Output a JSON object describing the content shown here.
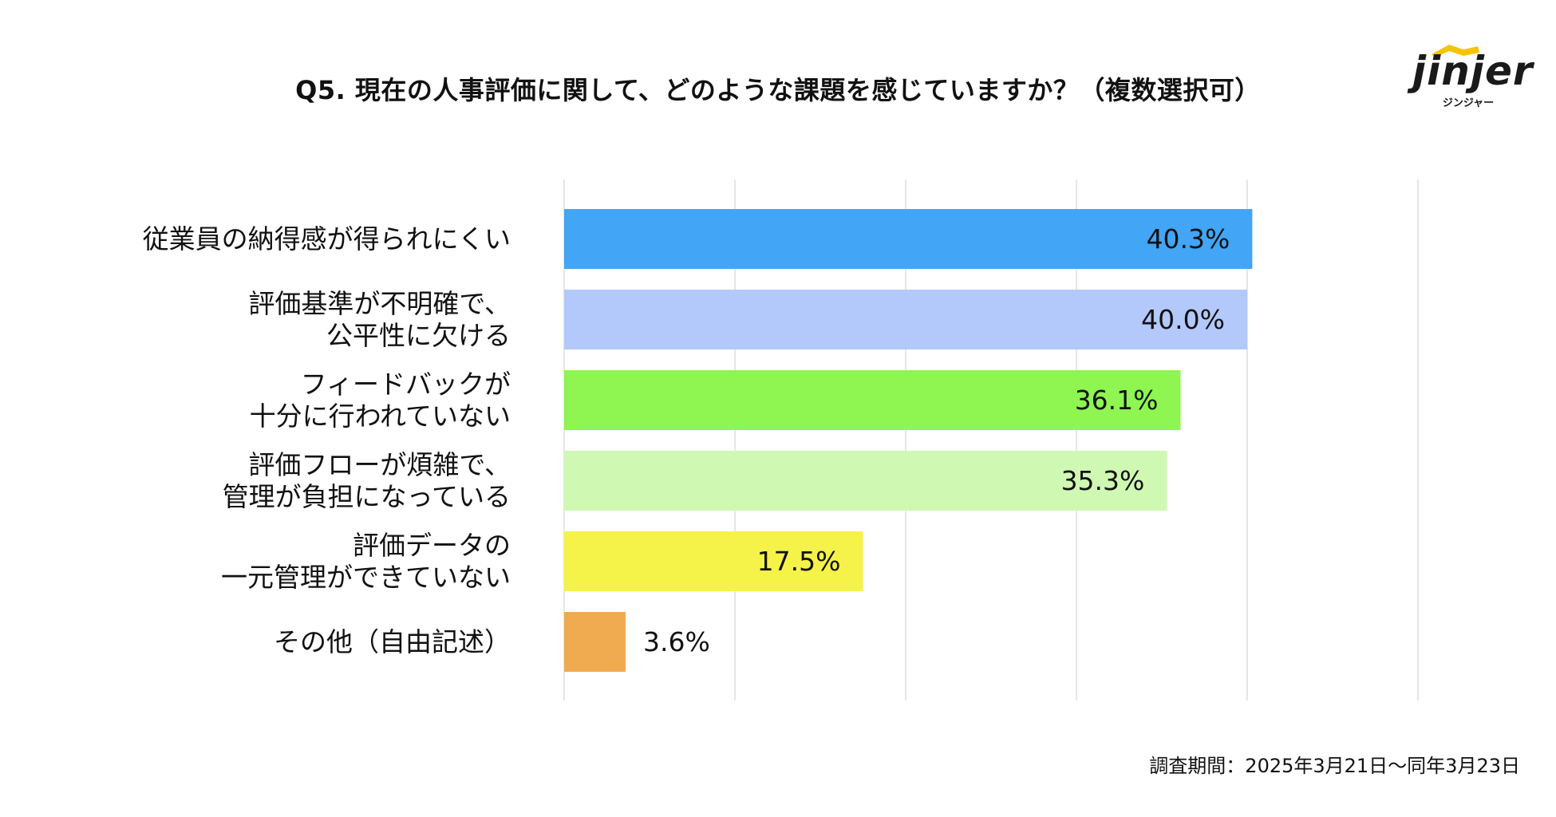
{
  "title": "Q5. 現在の人事評価に関して、どのような課題を感じていますか？（複数選択可）",
  "logo": {
    "word": "jinjer",
    "sub": "ジンジャー",
    "hat_color": "#f5c400"
  },
  "footnote": "調査期間：2025年3月21日～同年3月23日",
  "chart_data": {
    "type": "bar",
    "orientation": "horizontal",
    "categories": [
      [
        "従業員の納得感が得られにくい"
      ],
      [
        "評価基準が不明確で、",
        "公平性に欠ける"
      ],
      [
        "フィードバックが",
        "十分に行われていない"
      ],
      [
        "評価フローが煩雑で、",
        "管理が負担になっている"
      ],
      [
        "評価データの",
        "一元管理ができていない"
      ],
      [
        "その他（自由記述）"
      ]
    ],
    "values": [
      40.3,
      40.0,
      36.1,
      35.3,
      17.5,
      3.6
    ],
    "value_labels": [
      "40.3%",
      "40.0%",
      "36.1%",
      "35.3%",
      "17.5%",
      "3.6%"
    ],
    "colors": [
      "#42a5f5",
      "#b3c8fb",
      "#8ef551",
      "#cff9b2",
      "#f5f24a",
      "#f0ab50"
    ],
    "xlim": [
      0,
      50
    ],
    "grid_step": 10,
    "grid": true,
    "legend": "none"
  }
}
